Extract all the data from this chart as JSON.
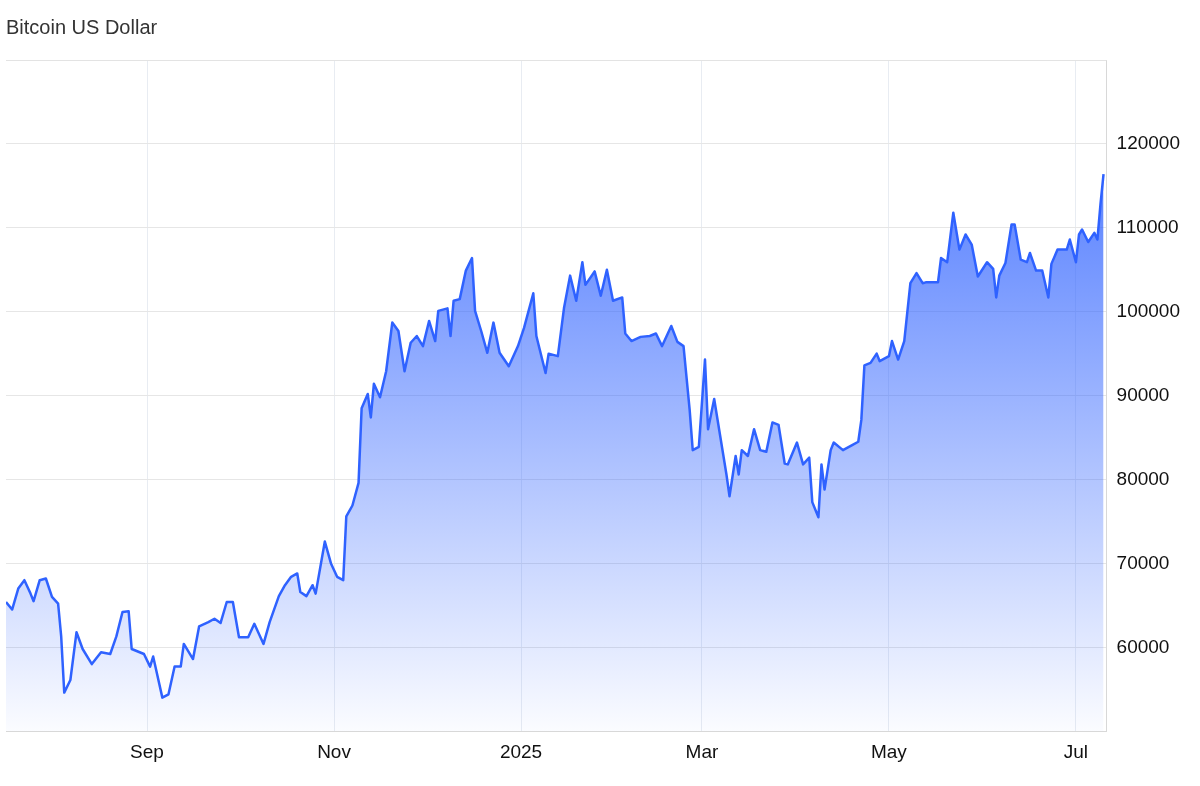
{
  "chart_data": {
    "type": "area",
    "title": "Bitcoin US Dollar",
    "x": [
      "2024-07-17",
      "2024-07-19",
      "2024-07-21",
      "2024-07-23",
      "2024-07-25",
      "2024-07-26",
      "2024-07-28",
      "2024-07-30",
      "2024-08-01",
      "2024-08-03",
      "2024-08-04",
      "2024-08-05",
      "2024-08-07",
      "2024-08-09",
      "2024-08-11",
      "2024-08-14",
      "2024-08-17",
      "2024-08-20",
      "2024-08-22",
      "2024-08-24",
      "2024-08-26",
      "2024-08-27",
      "2024-08-31",
      "2024-09-02",
      "2024-09-03",
      "2024-09-06",
      "2024-09-08",
      "2024-09-10",
      "2024-09-12",
      "2024-09-13",
      "2024-09-16",
      "2024-09-18",
      "2024-09-21",
      "2024-09-23",
      "2024-09-25",
      "2024-09-27",
      "2024-09-29",
      "2024-10-01",
      "2024-10-04",
      "2024-10-06",
      "2024-10-09",
      "2024-10-11",
      "2024-10-14",
      "2024-10-16",
      "2024-10-18",
      "2024-10-20",
      "2024-10-21",
      "2024-10-23",
      "2024-10-25",
      "2024-10-26",
      "2024-10-29",
      "2024-10-31",
      "2024-11-02",
      "2024-11-04",
      "2024-11-05",
      "2024-11-07",
      "2024-11-09",
      "2024-11-10",
      "2024-11-12",
      "2024-11-13",
      "2024-11-14",
      "2024-11-16",
      "2024-11-18",
      "2024-11-20",
      "2024-11-22",
      "2024-11-24",
      "2024-11-26",
      "2024-11-28",
      "2024-11-30",
      "2024-12-02",
      "2024-12-04",
      "2024-12-05",
      "2024-12-08",
      "2024-12-09",
      "2024-12-10",
      "2024-12-12",
      "2024-12-14",
      "2024-12-16",
      "2024-12-17",
      "2024-12-19",
      "2024-12-21",
      "2024-12-23",
      "2024-12-25",
      "2024-12-28",
      "2024-12-31",
      "2025-01-02",
      "2025-01-05",
      "2025-01-06",
      "2025-01-09",
      "2025-01-10",
      "2025-01-13",
      "2025-01-15",
      "2025-01-17",
      "2025-01-19",
      "2025-01-21",
      "2025-01-22",
      "2025-01-25",
      "2025-01-27",
      "2025-01-29",
      "2025-01-31",
      "2025-02-03",
      "2025-02-04",
      "2025-02-06",
      "2025-02-09",
      "2025-02-12",
      "2025-02-14",
      "2025-02-16",
      "2025-02-19",
      "2025-02-21",
      "2025-02-23",
      "2025-02-25",
      "2025-02-26",
      "2025-02-28",
      "2025-03-02",
      "2025-03-03",
      "2025-03-05",
      "2025-03-07",
      "2025-03-09",
      "2025-03-10",
      "2025-03-12",
      "2025-03-13",
      "2025-03-14",
      "2025-03-16",
      "2025-03-18",
      "2025-03-20",
      "2025-03-22",
      "2025-03-24",
      "2025-03-26",
      "2025-03-28",
      "2025-03-29",
      "2025-04-01",
      "2025-04-03",
      "2025-04-05",
      "2025-04-06",
      "2025-04-08",
      "2025-04-09",
      "2025-04-10",
      "2025-04-12",
      "2025-04-13",
      "2025-04-16",
      "2025-04-19",
      "2025-04-21",
      "2025-04-22",
      "2025-04-23",
      "2025-04-25",
      "2025-04-27",
      "2025-04-28",
      "2025-05-01",
      "2025-05-02",
      "2025-05-04",
      "2025-05-06",
      "2025-05-08",
      "2025-05-10",
      "2025-05-12",
      "2025-05-13",
      "2025-05-17",
      "2025-05-18",
      "2025-05-20",
      "2025-05-22",
      "2025-05-24",
      "2025-05-26",
      "2025-05-28",
      "2025-05-30",
      "2025-06-02",
      "2025-06-04",
      "2025-06-05",
      "2025-06-06",
      "2025-06-08",
      "2025-06-10",
      "2025-06-11",
      "2025-06-13",
      "2025-06-15",
      "2025-06-16",
      "2025-06-18",
      "2025-06-20",
      "2025-06-22",
      "2025-06-23",
      "2025-06-25",
      "2025-06-28",
      "2025-06-29",
      "2025-07-01",
      "2025-07-02",
      "2025-07-03",
      "2025-07-05",
      "2025-07-07",
      "2025-07-08",
      "2025-07-09",
      "2025-07-10"
    ],
    "series": [
      {
        "color": "#2f62ff",
        "values": [
          65400,
          64500,
          67000,
          68000,
          66400,
          65500,
          68000,
          68200,
          66000,
          65200,
          61300,
          54600,
          56100,
          61800,
          59800,
          58000,
          59400,
          59200,
          61300,
          64200,
          64300,
          59800,
          59200,
          57700,
          58900,
          54000,
          54400,
          57700,
          57700,
          60400,
          58600,
          62500,
          63000,
          63400,
          62900,
          65400,
          65400,
          61200,
          61200,
          62800,
          60400,
          63000,
          66100,
          67400,
          68400,
          68800,
          66600,
          66100,
          67400,
          66400,
          72600,
          70000,
          68400,
          68000,
          75600,
          76900,
          79600,
          88500,
          90200,
          87400,
          91400,
          89800,
          92900,
          98700,
          97700,
          92900,
          96300,
          97100,
          95900,
          98900,
          96500,
          100100,
          100400,
          97100,
          101300,
          101500,
          104900,
          106400,
          100100,
          97700,
          95100,
          98700,
          95100,
          93500,
          95900,
          98100,
          102200,
          97100,
          92700,
          95000,
          94700,
          100400,
          104300,
          101300,
          105900,
          103200,
          104800,
          101900,
          105000,
          101300,
          101700,
          97400,
          96500,
          97000,
          97100,
          97400,
          95900,
          98300,
          96400,
          95900,
          88300,
          83500,
          83900,
          94300,
          86000,
          89600,
          85100,
          80600,
          78000,
          82800,
          80600,
          83500,
          82800,
          86000,
          83500,
          83300,
          86800,
          86500,
          81900,
          81800,
          84400,
          81800,
          82600,
          77300,
          75500,
          81800,
          78800,
          83500,
          84400,
          83500,
          84100,
          84500,
          87100,
          93600,
          93900,
          95000,
          94100,
          94700,
          96500,
          94300,
          96500,
          103400,
          104600,
          103400,
          103500,
          103500,
          106400,
          105900,
          111800,
          107400,
          109200,
          108000,
          104200,
          105900,
          105100,
          101700,
          104300,
          105800,
          110400,
          110400,
          106200,
          105900,
          107000,
          104900,
          104900,
          101700,
          105700,
          107400,
          107400,
          108600,
          105900,
          109200,
          109800,
          108300,
          109400,
          108600,
          112800,
          116400
        ]
      }
    ],
    "xlim": [
      "2024-07-17",
      "2025-07-11"
    ],
    "xticks": [
      {
        "value": "2024-09-01",
        "label": "Sep"
      },
      {
        "value": "2024-11-01",
        "label": "Nov"
      },
      {
        "value": "2025-01-01",
        "label": "2025"
      },
      {
        "value": "2025-03-01",
        "label": "Mar"
      },
      {
        "value": "2025-05-01",
        "label": "May"
      },
      {
        "value": "2025-07-01",
        "label": "Jul"
      }
    ],
    "ylim": [
      50000,
      130000
    ],
    "yticks": [
      60000,
      70000,
      80000,
      90000,
      100000,
      110000,
      120000
    ],
    "grid": true,
    "legend": false,
    "marker": "none",
    "line_style": "solid"
  }
}
